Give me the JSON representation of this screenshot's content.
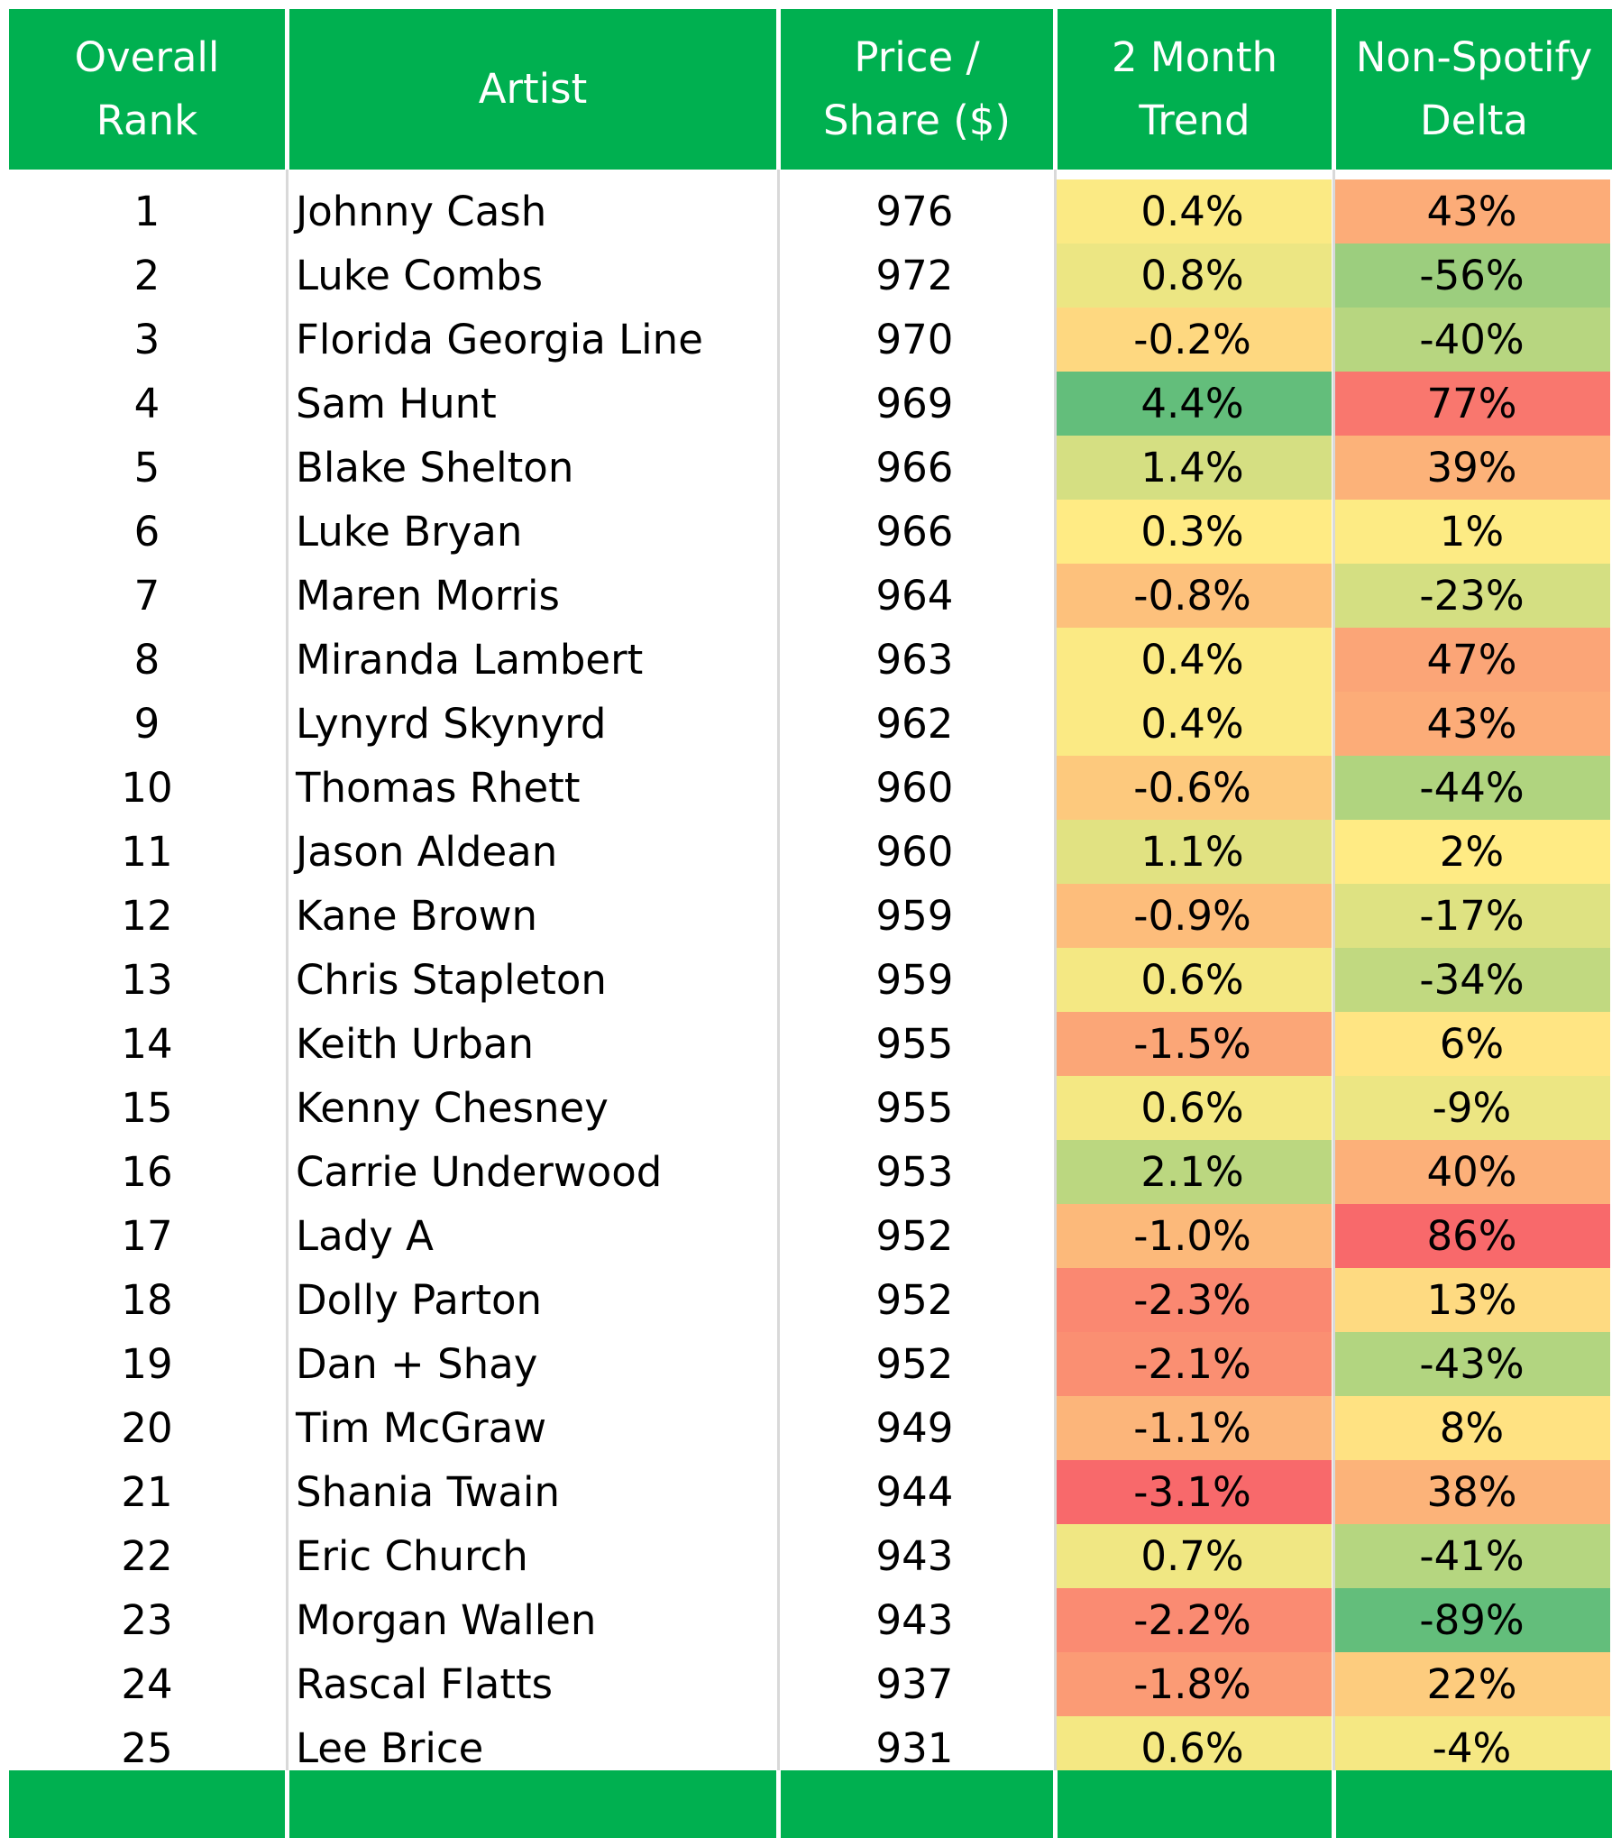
{
  "table": {
    "headers": {
      "rank": "Overall\nRank",
      "artist": "Artist",
      "price": "Price /\nShare ($)",
      "trend": "2 Month\nTrend",
      "delta": "Non-Spotify\nDelta"
    },
    "rows": [
      {
        "rank": "1",
        "artist": "Johnny Cash",
        "price": "976",
        "trend": "0.4%",
        "delta": "43%"
      },
      {
        "rank": "2",
        "artist": "Luke Combs",
        "price": "972",
        "trend": "0.8%",
        "delta": "-56%"
      },
      {
        "rank": "3",
        "artist": "Florida Georgia Line",
        "price": "970",
        "trend": "-0.2%",
        "delta": "-40%"
      },
      {
        "rank": "4",
        "artist": "Sam Hunt",
        "price": "969",
        "trend": "4.4%",
        "delta": "77%"
      },
      {
        "rank": "5",
        "artist": "Blake Shelton",
        "price": "966",
        "trend": "1.4%",
        "delta": "39%"
      },
      {
        "rank": "6",
        "artist": "Luke Bryan",
        "price": "966",
        "trend": "0.3%",
        "delta": "1%"
      },
      {
        "rank": "7",
        "artist": "Maren Morris",
        "price": "964",
        "trend": "-0.8%",
        "delta": "-23%"
      },
      {
        "rank": "8",
        "artist": "Miranda Lambert",
        "price": "963",
        "trend": "0.4%",
        "delta": "47%"
      },
      {
        "rank": "9",
        "artist": "Lynyrd Skynyrd",
        "price": "962",
        "trend": "0.4%",
        "delta": "43%"
      },
      {
        "rank": "10",
        "artist": "Thomas Rhett",
        "price": "960",
        "trend": "-0.6%",
        "delta": "-44%"
      },
      {
        "rank": "11",
        "artist": "Jason Aldean",
        "price": "960",
        "trend": "1.1%",
        "delta": "2%"
      },
      {
        "rank": "12",
        "artist": "Kane Brown",
        "price": "959",
        "trend": "-0.9%",
        "delta": "-17%"
      },
      {
        "rank": "13",
        "artist": "Chris Stapleton",
        "price": "959",
        "trend": "0.6%",
        "delta": "-34%"
      },
      {
        "rank": "14",
        "artist": "Keith Urban",
        "price": "955",
        "trend": "-1.5%",
        "delta": "6%"
      },
      {
        "rank": "15",
        "artist": "Kenny Chesney",
        "price": "955",
        "trend": "0.6%",
        "delta": "-9%"
      },
      {
        "rank": "16",
        "artist": "Carrie Underwood",
        "price": "953",
        "trend": "2.1%",
        "delta": "40%"
      },
      {
        "rank": "17",
        "artist": "Lady A",
        "price": "952",
        "trend": "-1.0%",
        "delta": "86%"
      },
      {
        "rank": "18",
        "artist": "Dolly Parton",
        "price": "952",
        "trend": "-2.3%",
        "delta": "13%"
      },
      {
        "rank": "19",
        "artist": "Dan + Shay",
        "price": "952",
        "trend": "-2.1%",
        "delta": "-43%"
      },
      {
        "rank": "20",
        "artist": "Tim McGraw",
        "price": "949",
        "trend": "-1.1%",
        "delta": "8%"
      },
      {
        "rank": "21",
        "artist": "Shania Twain",
        "price": "944",
        "trend": "-3.1%",
        "delta": "38%"
      },
      {
        "rank": "22",
        "artist": "Eric Church",
        "price": "943",
        "trend": "0.7%",
        "delta": "-41%"
      },
      {
        "rank": "23",
        "artist": "Morgan Wallen",
        "price": "943",
        "trend": "-2.2%",
        "delta": "-89%"
      },
      {
        "rank": "24",
        "artist": "Rascal Flatts",
        "price": "937",
        "trend": "-1.8%",
        "delta": "22%"
      },
      {
        "rank": "25",
        "artist": "Lee Brice",
        "price": "931",
        "trend": "0.6%",
        "delta": "-4%"
      }
    ]
  },
  "colors": {
    "header_bg": "#00b050",
    "header_text": "#ffffff",
    "scale_low": "#63be7b",
    "scale_mid": "#ffeb84",
    "scale_high": "#f8696b"
  },
  "chart_data": {
    "type": "table",
    "columns": [
      "Overall Rank",
      "Artist",
      "Price / Share ($)",
      "2 Month Trend",
      "Non-Spotify Delta"
    ],
    "rank": [
      1,
      2,
      3,
      4,
      5,
      6,
      7,
      8,
      9,
      10,
      11,
      12,
      13,
      14,
      15,
      16,
      17,
      18,
      19,
      20,
      21,
      22,
      23,
      24,
      25
    ],
    "price": [
      976,
      972,
      970,
      969,
      966,
      966,
      964,
      963,
      962,
      960,
      960,
      959,
      959,
      955,
      955,
      953,
      952,
      952,
      952,
      949,
      944,
      943,
      943,
      937,
      931
    ],
    "trend_pct": [
      0.4,
      0.8,
      -0.2,
      4.4,
      1.4,
      0.3,
      -0.8,
      0.4,
      0.4,
      -0.6,
      1.1,
      -0.9,
      0.6,
      -1.5,
      0.6,
      2.1,
      -1.0,
      -2.3,
      -2.1,
      -1.1,
      -3.1,
      0.7,
      -2.2,
      -1.8,
      0.6
    ],
    "delta_pct": [
      43,
      -56,
      -40,
      77,
      39,
      1,
      -23,
      47,
      43,
      -44,
      2,
      -17,
      -34,
      6,
      -9,
      40,
      86,
      13,
      -43,
      8,
      38,
      -41,
      -89,
      22,
      -4
    ],
    "trend_color_scale": "high values green, low values red",
    "delta_color_scale": "high values red, low values green"
  }
}
